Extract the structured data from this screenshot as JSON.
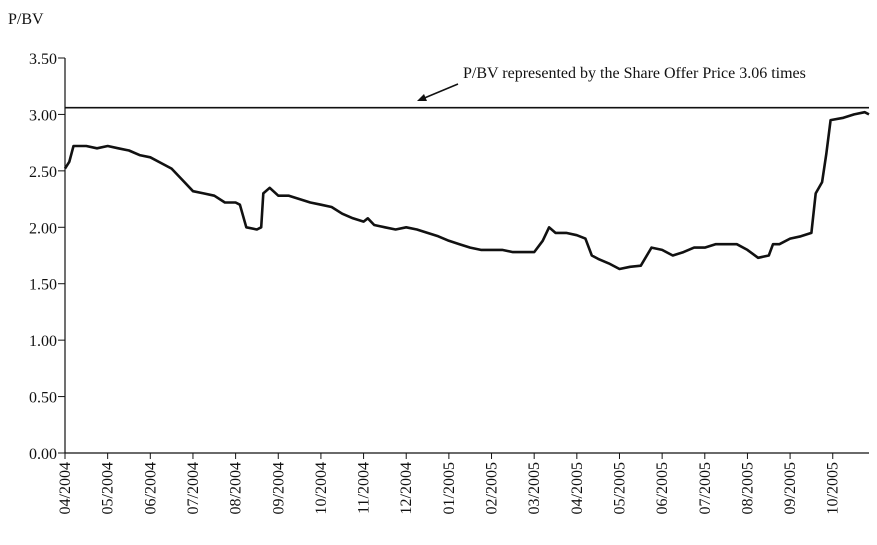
{
  "chart_data": {
    "type": "line",
    "y_axis_label": "P/BV",
    "annotation": "P/BV represented by the Share Offer Price 3.06 times",
    "reference_line": 3.06,
    "xlim": [
      0,
      18.85
    ],
    "xticks": [
      {
        "value": 0,
        "label": "04/2004"
      },
      {
        "value": 1,
        "label": "05/2004"
      },
      {
        "value": 2,
        "label": "06/2004"
      },
      {
        "value": 3,
        "label": "07/2004"
      },
      {
        "value": 4,
        "label": "08/2004"
      },
      {
        "value": 5,
        "label": "09/2004"
      },
      {
        "value": 6,
        "label": "10/2004"
      },
      {
        "value": 7,
        "label": "11/2004"
      },
      {
        "value": 8,
        "label": "12/2004"
      },
      {
        "value": 9,
        "label": "01/2005"
      },
      {
        "value": 10,
        "label": "02/2005"
      },
      {
        "value": 11,
        "label": "03/2005"
      },
      {
        "value": 12,
        "label": "04/2005"
      },
      {
        "value": 13,
        "label": "05/2005"
      },
      {
        "value": 14,
        "label": "06/2005"
      },
      {
        "value": 15,
        "label": "07/2005"
      },
      {
        "value": 16,
        "label": "08/2005"
      },
      {
        "value": 17,
        "label": "09/2005"
      },
      {
        "value": 18,
        "label": "10/2005"
      }
    ],
    "ylim": [
      0,
      3.5
    ],
    "yticks": [
      {
        "value": 0,
        "label": "0.00"
      },
      {
        "value": 0.5,
        "label": "0.50"
      },
      {
        "value": 1,
        "label": "1.00"
      },
      {
        "value": 1.5,
        "label": "1.50"
      },
      {
        "value": 2,
        "label": "2.00"
      },
      {
        "value": 2.5,
        "label": "2.50"
      },
      {
        "value": 3,
        "label": "3.00"
      },
      {
        "value": 3.5,
        "label": "3.50"
      }
    ],
    "x": [
      0,
      0.1,
      0.2,
      0.5,
      0.75,
      1,
      1.25,
      1.5,
      1.75,
      2,
      2.25,
      2.5,
      2.75,
      3,
      3.25,
      3.5,
      3.75,
      4,
      4.1,
      4.25,
      4.5,
      4.6,
      4.65,
      4.8,
      5,
      5.25,
      5.5,
      5.75,
      6,
      6.25,
      6.5,
      6.75,
      7,
      7.1,
      7.25,
      7.5,
      7.75,
      8,
      8.25,
      8.5,
      8.75,
      9,
      9.25,
      9.5,
      9.75,
      10,
      10.25,
      10.5,
      10.75,
      11,
      11.2,
      11.35,
      11.5,
      11.75,
      12,
      12.2,
      12.35,
      12.5,
      12.75,
      13,
      13.25,
      13.5,
      13.75,
      14,
      14.25,
      14.5,
      14.75,
      15,
      15.25,
      15.5,
      15.75,
      16,
      16.25,
      16.5,
      16.6,
      16.75,
      17,
      17.25,
      17.5,
      17.6,
      17.75,
      17.85,
      17.95,
      18.25,
      18.5,
      18.75,
      18.85
    ],
    "series": [
      {
        "color": "#111111",
        "values": [
          2.52,
          2.58,
          2.72,
          2.72,
          2.7,
          2.72,
          2.7,
          2.68,
          2.64,
          2.62,
          2.57,
          2.52,
          2.42,
          2.32,
          2.3,
          2.28,
          2.22,
          2.22,
          2.2,
          2.0,
          1.98,
          2.0,
          2.3,
          2.35,
          2.28,
          2.28,
          2.25,
          2.22,
          2.2,
          2.18,
          2.12,
          2.08,
          2.05,
          2.08,
          2.02,
          2.0,
          1.98,
          2.0,
          1.98,
          1.95,
          1.92,
          1.88,
          1.85,
          1.82,
          1.8,
          1.8,
          1.8,
          1.78,
          1.78,
          1.78,
          1.88,
          2.0,
          1.95,
          1.95,
          1.93,
          1.9,
          1.75,
          1.72,
          1.68,
          1.63,
          1.65,
          1.66,
          1.82,
          1.8,
          1.75,
          1.78,
          1.82,
          1.82,
          1.85,
          1.85,
          1.85,
          1.8,
          1.73,
          1.75,
          1.85,
          1.85,
          1.9,
          1.92,
          1.95,
          2.3,
          2.4,
          2.65,
          2.95,
          2.97,
          3.0,
          3.02,
          3.0
        ]
      }
    ]
  }
}
